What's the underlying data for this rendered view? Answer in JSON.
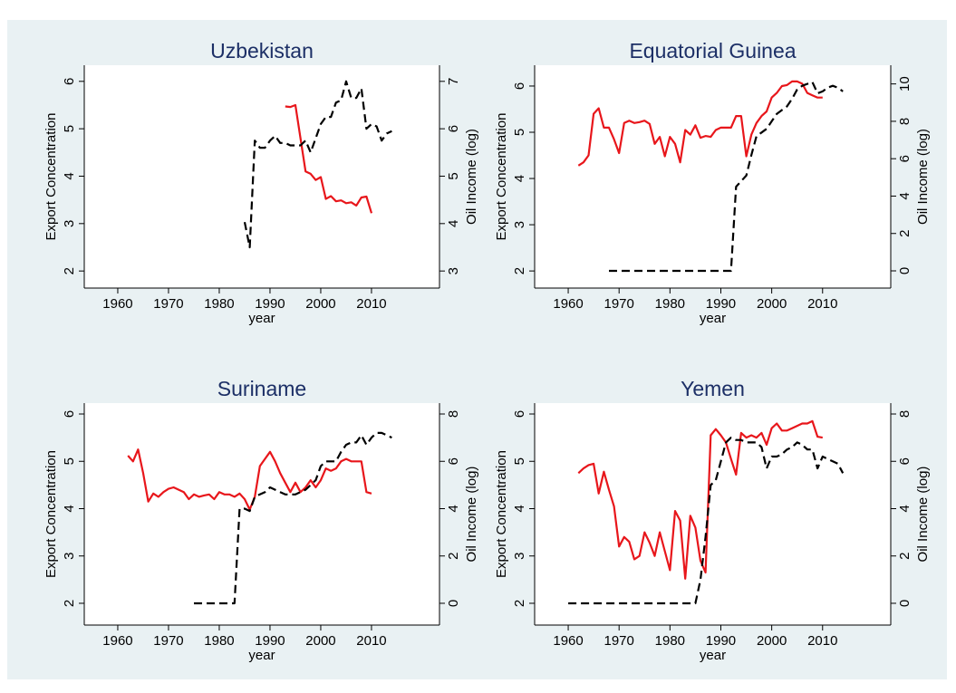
{
  "chart_data": [
    {
      "type": "line",
      "title": "Uzbekistan",
      "xlabel": "year",
      "ylabel": "Export Concentration",
      "y2label": "Oil Income (log)",
      "xlim": [
        1953.4,
        2023.4
      ],
      "xticks": [
        1960,
        1970,
        1980,
        1990,
        2000,
        2010
      ],
      "ylim": [
        1.64,
        6.34
      ],
      "yticks": [
        2,
        3,
        4,
        5,
        6
      ],
      "y2lim": [
        2.64,
        7.34
      ],
      "y2ticks": [
        3,
        4,
        5,
        6,
        7
      ],
      "series": [
        {
          "color": "#e8161b",
          "style": "solid",
          "x": [
            1993,
            1994,
            1995,
            1996,
            1997,
            1998,
            1999,
            2000,
            2001,
            2002,
            2003,
            2004,
            2005,
            2006,
            2007,
            2008,
            2009,
            2010
          ],
          "values": [
            5.47,
            5.46,
            5.5,
            4.8,
            4.1,
            4.05,
            3.92,
            3.98,
            3.52,
            3.58,
            3.47,
            3.49,
            3.43,
            3.45,
            3.38,
            3.55,
            3.57,
            3.22
          ]
        },
        {
          "color": "#000000",
          "style": "dashed",
          "axis": "y2",
          "x": [
            1985,
            1986,
            1987,
            1988,
            1989,
            1990,
            1991,
            1992,
            1993,
            1994,
            1995,
            1996,
            1997,
            1998,
            1999,
            2000,
            2001,
            2002,
            2003,
            2004,
            2005,
            2006,
            2007,
            2008,
            2009,
            2010,
            2011,
            2012,
            2013,
            2014
          ],
          "values": [
            4.03,
            3.5,
            5.75,
            5.6,
            5.6,
            5.75,
            5.85,
            5.7,
            5.7,
            5.65,
            5.65,
            5.65,
            5.75,
            5.5,
            5.8,
            6.1,
            6.25,
            6.25,
            6.55,
            6.6,
            7.0,
            6.65,
            6.65,
            6.85,
            6.0,
            6.1,
            6.05,
            5.75,
            5.9,
            5.95
          ]
        }
      ]
    },
    {
      "type": "line",
      "title": "Equatorial Guinea",
      "xlabel": "year",
      "ylabel": "Export Concentration",
      "y2label": "Oil Income (log)",
      "xlim": [
        1953.4,
        2023.4
      ],
      "xticks": [
        1960,
        1970,
        1980,
        1990,
        2000,
        2010
      ],
      "ylim": [
        1.63,
        6.45
      ],
      "yticks": [
        2,
        3,
        4,
        5,
        6
      ],
      "y2lim": [
        -0.92,
        11.0
      ],
      "y2ticks": [
        0,
        2,
        4,
        6,
        8,
        10
      ],
      "series": [
        {
          "color": "#e8161b",
          "style": "solid",
          "x": [
            1962,
            1963,
            1964,
            1965,
            1966,
            1967,
            1968,
            1969,
            1970,
            1971,
            1972,
            1973,
            1974,
            1975,
            1976,
            1977,
            1978,
            1979,
            1980,
            1981,
            1982,
            1983,
            1984,
            1985,
            1986,
            1987,
            1988,
            1989,
            1990,
            1991,
            1992,
            1993,
            1994,
            1995,
            1996,
            1997,
            1998,
            1999,
            2000,
            2001,
            2002,
            2003,
            2004,
            2005,
            2006,
            2007,
            2008,
            2009,
            2010
          ],
          "values": [
            4.28,
            4.35,
            4.5,
            5.4,
            5.52,
            5.1,
            5.1,
            4.85,
            4.55,
            5.2,
            5.25,
            5.2,
            5.22,
            5.25,
            5.18,
            4.75,
            4.9,
            4.48,
            4.9,
            4.75,
            4.35,
            5.05,
            4.95,
            5.15,
            4.88,
            4.92,
            4.9,
            5.05,
            5.1,
            5.1,
            5.1,
            5.35,
            5.35,
            4.48,
            4.95,
            5.2,
            5.35,
            5.45,
            5.75,
            5.85,
            6.0,
            6.02,
            6.1,
            6.1,
            6.05,
            5.85,
            5.8,
            5.75,
            5.75
          ]
        },
        {
          "color": "#000000",
          "style": "dashed",
          "axis": "y2",
          "x": [
            1968,
            1969,
            1970,
            1971,
            1972,
            1973,
            1974,
            1975,
            1976,
            1977,
            1978,
            1979,
            1980,
            1981,
            1982,
            1983,
            1984,
            1985,
            1986,
            1987,
            1988,
            1989,
            1990,
            1991,
            1992,
            1993,
            1994,
            1995,
            1996,
            1997,
            1998,
            1999,
            2000,
            2001,
            2002,
            2003,
            2004,
            2005,
            2006,
            2007,
            2008,
            2009,
            2010,
            2011,
            2012,
            2013,
            2014
          ],
          "values": [
            0,
            0,
            0,
            0,
            0,
            0,
            0,
            0,
            0,
            0,
            0,
            0,
            0,
            0,
            0,
            0,
            0,
            0,
            0,
            0,
            0,
            0,
            0,
            0,
            0,
            4.5,
            4.8,
            5.1,
            6.2,
            7.2,
            7.4,
            7.6,
            8.0,
            8.4,
            8.6,
            8.8,
            9.2,
            9.7,
            9.9,
            10.0,
            10.1,
            9.5,
            9.6,
            9.8,
            9.9,
            9.8,
            9.6
          ]
        }
      ]
    },
    {
      "type": "line",
      "title": "Suriname",
      "xlabel": "year",
      "ylabel": "Export Concentration",
      "y2label": "Oil Income (log)",
      "xlim": [
        1953.4,
        2023.4
      ],
      "xticks": [
        1960,
        1970,
        1980,
        1990,
        2000,
        2010
      ],
      "ylim": [
        1.54,
        6.23
      ],
      "yticks": [
        2,
        3,
        4,
        5,
        6
      ],
      "y2lim": [
        -0.92,
        8.46
      ],
      "y2ticks": [
        0,
        2,
        4,
        6,
        8
      ],
      "series": [
        {
          "color": "#e8161b",
          "style": "solid",
          "x": [
            1962,
            1963,
            1964,
            1965,
            1966,
            1967,
            1968,
            1969,
            1970,
            1971,
            1972,
            1973,
            1974,
            1975,
            1976,
            1977,
            1978,
            1979,
            1980,
            1981,
            1982,
            1983,
            1984,
            1985,
            1986,
            1987,
            1988,
            1989,
            1990,
            1991,
            1992,
            1993,
            1994,
            1995,
            1996,
            1997,
            1998,
            1999,
            2000,
            2001,
            2002,
            2003,
            2004,
            2005,
            2006,
            2007,
            2008,
            2009,
            2010
          ],
          "values": [
            5.12,
            5.0,
            5.25,
            4.75,
            4.15,
            4.32,
            4.25,
            4.35,
            4.42,
            4.45,
            4.4,
            4.35,
            4.2,
            4.3,
            4.25,
            4.28,
            4.3,
            4.2,
            4.35,
            4.3,
            4.3,
            4.25,
            4.32,
            4.2,
            3.98,
            4.25,
            4.9,
            5.05,
            5.2,
            5.0,
            4.75,
            4.55,
            4.35,
            4.55,
            4.35,
            4.45,
            4.6,
            4.45,
            4.6,
            4.85,
            4.8,
            4.85,
            5.0,
            5.05,
            5.0,
            5.0,
            5.0,
            4.35,
            4.32
          ]
        },
        {
          "color": "#000000",
          "style": "dashed",
          "axis": "y2",
          "x": [
            1975,
            1976,
            1977,
            1978,
            1979,
            1980,
            1981,
            1982,
            1983,
            1984,
            1985,
            1986,
            1987,
            1988,
            1989,
            1990,
            1991,
            1992,
            1993,
            1994,
            1995,
            1996,
            1997,
            1998,
            1999,
            2000,
            2001,
            2002,
            2003,
            2004,
            2005,
            2006,
            2007,
            2008,
            2009,
            2010,
            2011,
            2012,
            2013,
            2014
          ],
          "values": [
            0,
            0,
            0,
            0,
            0,
            0,
            0,
            0,
            0,
            4.0,
            4.0,
            3.9,
            4.5,
            4.6,
            4.7,
            4.9,
            4.8,
            4.7,
            4.6,
            4.6,
            4.6,
            4.7,
            4.8,
            5.0,
            5.2,
            5.8,
            6.0,
            6.0,
            6.0,
            6.4,
            6.7,
            6.8,
            6.8,
            7.1,
            6.7,
            7.0,
            7.2,
            7.2,
            7.1,
            7.0
          ]
        }
      ]
    },
    {
      "type": "line",
      "title": "Yemen",
      "xlabel": "year",
      "ylabel": "Export Concentration",
      "y2label": "Oil Income (log)",
      "xlim": [
        1953.4,
        2023.4
      ],
      "xticks": [
        1960,
        1970,
        1980,
        1990,
        2000,
        2010
      ],
      "ylim": [
        1.54,
        6.23
      ],
      "yticks": [
        2,
        3,
        4,
        5,
        6
      ],
      "y2lim": [
        -0.92,
        8.46
      ],
      "y2ticks": [
        0,
        2,
        4,
        6,
        8
      ],
      "series": [
        {
          "color": "#e8161b",
          "style": "solid",
          "x": [
            1962,
            1963,
            1964,
            1965,
            1966,
            1967,
            1968,
            1969,
            1970,
            1971,
            1972,
            1973,
            1974,
            1975,
            1976,
            1977,
            1978,
            1979,
            1980,
            1981,
            1982,
            1983,
            1984,
            1985,
            1986,
            1987,
            1988,
            1989,
            1990,
            1991,
            1992,
            1993,
            1994,
            1995,
            1996,
            1997,
            1998,
            1999,
            2000,
            2001,
            2002,
            2003,
            2004,
            2005,
            2006,
            2007,
            2008,
            2009,
            2010
          ],
          "values": [
            4.75,
            4.85,
            4.92,
            4.95,
            4.32,
            4.78,
            4.4,
            4.05,
            3.2,
            3.4,
            3.3,
            2.93,
            3.0,
            3.5,
            3.28,
            3.0,
            3.5,
            3.1,
            2.7,
            3.95,
            3.75,
            2.52,
            3.85,
            3.6,
            2.9,
            2.65,
            5.55,
            5.68,
            5.55,
            5.4,
            5.05,
            4.72,
            5.6,
            5.5,
            5.55,
            5.5,
            5.6,
            5.35,
            5.7,
            5.8,
            5.65,
            5.65,
            5.7,
            5.75,
            5.8,
            5.8,
            5.85,
            5.52,
            5.5
          ]
        },
        {
          "color": "#000000",
          "style": "dashed",
          "axis": "y2",
          "x": [
            1960,
            1961,
            1962,
            1963,
            1964,
            1965,
            1966,
            1967,
            1968,
            1969,
            1970,
            1971,
            1972,
            1973,
            1974,
            1975,
            1976,
            1977,
            1978,
            1979,
            1980,
            1981,
            1982,
            1983,
            1984,
            1985,
            1986,
            1987,
            1988,
            1989,
            1990,
            1991,
            1992,
            1993,
            1994,
            1995,
            1996,
            1997,
            1998,
            1999,
            2000,
            2001,
            2002,
            2003,
            2004,
            2005,
            2006,
            2007,
            2008,
            2009,
            2010,
            2011,
            2012,
            2013,
            2014
          ],
          "values": [
            0,
            0,
            0,
            0,
            0,
            0,
            0,
            0,
            0,
            0,
            0,
            0,
            0,
            0,
            0,
            0,
            0,
            0,
            0,
            0,
            0,
            0,
            0,
            0,
            0,
            0,
            1.0,
            2.8,
            5.0,
            5.2,
            6.0,
            6.8,
            7.0,
            6.9,
            6.9,
            6.8,
            6.8,
            6.8,
            6.6,
            5.7,
            6.2,
            6.2,
            6.3,
            6.5,
            6.6,
            6.8,
            6.7,
            6.5,
            6.5,
            5.7,
            6.2,
            6.1,
            6.0,
            5.9,
            5.5
          ]
        }
      ]
    }
  ]
}
